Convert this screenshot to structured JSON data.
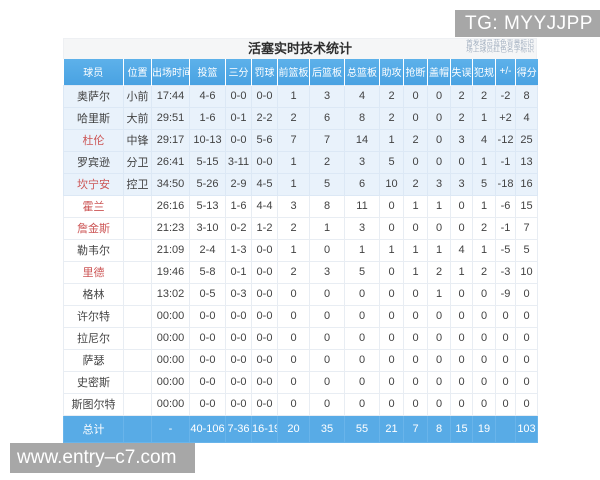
{
  "watermarks": {
    "top_right": "TG: MYYJJPP",
    "bottom_left": "www.entry–c7.com"
  },
  "table": {
    "title": "活塞实时技术统计",
    "legend_line1": "首发球员蓝色背景标识",
    "legend_line2": "场上球员红色名字标识",
    "columns": [
      "球员",
      "位置",
      "出场时间",
      "投篮",
      "三分",
      "罚球",
      "前篮板",
      "后篮板",
      "总篮板",
      "助攻",
      "抢断",
      "盖帽",
      "失误",
      "犯规",
      "+/-",
      "得分"
    ],
    "rows": [
      {
        "name": "奥萨尔",
        "red": false,
        "starter": true,
        "position": "小前",
        "stats": [
          "17:44",
          "4-6",
          "0-0",
          "0-0",
          "1",
          "3",
          "4",
          "2",
          "0",
          "0",
          "2",
          "2",
          "-2",
          "8"
        ]
      },
      {
        "name": "哈里斯",
        "red": false,
        "starter": true,
        "position": "大前",
        "stats": [
          "29:51",
          "1-6",
          "0-1",
          "2-2",
          "2",
          "6",
          "8",
          "2",
          "0",
          "0",
          "2",
          "1",
          "+2",
          "4"
        ]
      },
      {
        "name": "杜伦",
        "red": true,
        "starter": true,
        "position": "中锋",
        "stats": [
          "29:17",
          "10-13",
          "0-0",
          "5-6",
          "7",
          "7",
          "14",
          "1",
          "2",
          "0",
          "3",
          "4",
          "-12",
          "25"
        ]
      },
      {
        "name": "罗宾逊",
        "red": false,
        "starter": true,
        "position": "分卫",
        "stats": [
          "26:41",
          "5-15",
          "3-11",
          "0-0",
          "1",
          "2",
          "3",
          "5",
          "0",
          "0",
          "0",
          "1",
          "-1",
          "13"
        ]
      },
      {
        "name": "坎宁安",
        "red": true,
        "starter": true,
        "position": "控卫",
        "stats": [
          "34:50",
          "5-26",
          "2-9",
          "4-5",
          "1",
          "5",
          "6",
          "10",
          "2",
          "3",
          "3",
          "5",
          "-18",
          "16"
        ]
      },
      {
        "name": "霍兰",
        "red": true,
        "starter": false,
        "position": "",
        "stats": [
          "26:16",
          "5-13",
          "1-6",
          "4-4",
          "3",
          "8",
          "11",
          "0",
          "1",
          "1",
          "0",
          "1",
          "-6",
          "15"
        ]
      },
      {
        "name": "詹金斯",
        "red": true,
        "starter": false,
        "position": "",
        "stats": [
          "21:23",
          "3-10",
          "0-2",
          "1-2",
          "2",
          "1",
          "3",
          "0",
          "0",
          "0",
          "0",
          "2",
          "-1",
          "7"
        ]
      },
      {
        "name": "勒韦尔",
        "red": false,
        "starter": false,
        "position": "",
        "stats": [
          "21:09",
          "2-4",
          "1-3",
          "0-0",
          "1",
          "0",
          "1",
          "1",
          "1",
          "1",
          "4",
          "1",
          "-5",
          "5"
        ]
      },
      {
        "name": "里德",
        "red": true,
        "starter": false,
        "position": "",
        "stats": [
          "19:46",
          "5-8",
          "0-1",
          "0-0",
          "2",
          "3",
          "5",
          "0",
          "1",
          "2",
          "1",
          "2",
          "-3",
          "10"
        ]
      },
      {
        "name": "格林",
        "red": false,
        "starter": false,
        "position": "",
        "stats": [
          "13:02",
          "0-5",
          "0-3",
          "0-0",
          "0",
          "0",
          "0",
          "0",
          "0",
          "1",
          "0",
          "0",
          "-9",
          "0"
        ]
      },
      {
        "name": "许尔特",
        "red": false,
        "starter": false,
        "position": "",
        "stats": [
          "00:00",
          "0-0",
          "0-0",
          "0-0",
          "0",
          "0",
          "0",
          "0",
          "0",
          "0",
          "0",
          "0",
          "0",
          "0"
        ]
      },
      {
        "name": "拉尼尔",
        "red": false,
        "starter": false,
        "position": "",
        "stats": [
          "00:00",
          "0-0",
          "0-0",
          "0-0",
          "0",
          "0",
          "0",
          "0",
          "0",
          "0",
          "0",
          "0",
          "0",
          "0"
        ]
      },
      {
        "name": "萨瑟",
        "red": false,
        "starter": false,
        "position": "",
        "stats": [
          "00:00",
          "0-0",
          "0-0",
          "0-0",
          "0",
          "0",
          "0",
          "0",
          "0",
          "0",
          "0",
          "0",
          "0",
          "0"
        ]
      },
      {
        "name": "史密斯",
        "red": false,
        "starter": false,
        "position": "",
        "stats": [
          "00:00",
          "0-0",
          "0-0",
          "0-0",
          "0",
          "0",
          "0",
          "0",
          "0",
          "0",
          "0",
          "0",
          "0",
          "0"
        ]
      },
      {
        "name": "斯图尔特",
        "red": false,
        "starter": false,
        "position": "",
        "stats": [
          "00:00",
          "0-0",
          "0-0",
          "0-0",
          "0",
          "0",
          "0",
          "0",
          "0",
          "0",
          "0",
          "0",
          "0",
          "0"
        ]
      }
    ],
    "totals": {
      "label": "总计",
      "position": "",
      "stats": [
        "-",
        "40-106",
        "7-36",
        "16-19",
        "20",
        "35",
        "55",
        "21",
        "7",
        "8",
        "15",
        "19",
        "",
        "103"
      ]
    }
  },
  "colors": {
    "header_blue": "#4fa6e3",
    "totals_blue": "#58abe6",
    "starter_row_bg": "#e9f2fb",
    "red_name": "#cc5555",
    "watermark_gray": "#a7a7a7",
    "title_bar_bg": "#f5f6f7"
  }
}
